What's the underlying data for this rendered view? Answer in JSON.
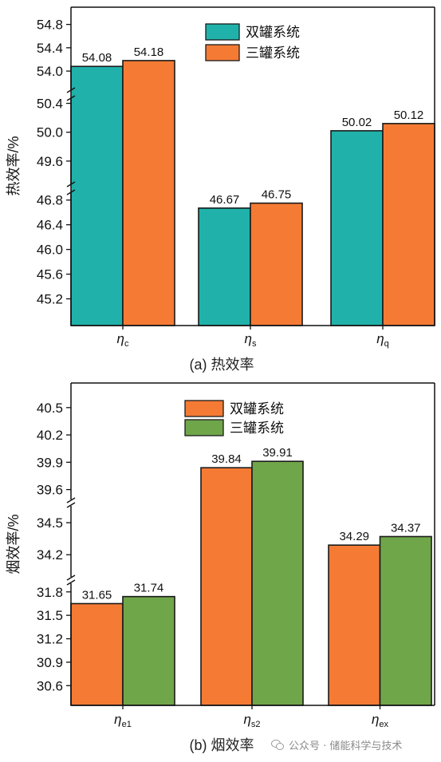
{
  "figure": {
    "watermark": "公众号 · 储能科学与技术"
  },
  "chart_data": [
    {
      "type": "bar",
      "caption": "(a) 热效率",
      "ylabel": "热效率/%",
      "categories": [
        {
          "sym": "η",
          "sub": "c"
        },
        {
          "sym": "η",
          "sub": "s"
        },
        {
          "sym": "η",
          "sub": "q"
        }
      ],
      "series": [
        {
          "name": "双罐系统",
          "color": "#20b2aa",
          "values": [
            54.08,
            46.67,
            50.02
          ]
        },
        {
          "name": "三罐系统",
          "color": "#f57b35",
          "values": [
            54.18,
            46.75,
            50.12
          ]
        }
      ],
      "value_labels": [
        [
          "54.08",
          "46.67",
          "50.02"
        ],
        [
          "54.18",
          "46.75",
          "50.12"
        ]
      ],
      "broken_axis": [
        {
          "range": [
            45.0,
            46.9
          ],
          "ticks": [
            "45.2",
            "45.6",
            "46.0",
            "46.4",
            "46.8"
          ]
        },
        {
          "range": [
            49.3,
            50.45
          ],
          "ticks": [
            "49.6",
            "50.0",
            "50.4"
          ]
        },
        {
          "range": [
            53.7,
            55.0
          ],
          "ticks": [
            "54.0",
            "54.4",
            "54.8"
          ]
        }
      ],
      "legend_position": "top-center"
    },
    {
      "type": "bar",
      "caption": "(b) 烟效率",
      "ylabel": "烟效率/%",
      "categories": [
        {
          "sym": "η",
          "sub": "e1"
        },
        {
          "sym": "η",
          "sub": "s2"
        },
        {
          "sym": "η",
          "sub": "ex"
        }
      ],
      "series": [
        {
          "name": "双罐系统",
          "color": "#f57b35",
          "values": [
            31.65,
            39.84,
            34.29
          ]
        },
        {
          "name": "三罐系统",
          "color": "#70a64a",
          "values": [
            31.74,
            39.91,
            34.37
          ]
        }
      ],
      "value_labels": [
        [
          "31.65",
          "39.84",
          "34.29"
        ],
        [
          "31.74",
          "39.91",
          "34.37"
        ]
      ],
      "broken_axis": [
        {
          "range": [
            30.45,
            31.9
          ],
          "ticks": [
            "30.6",
            "30.9",
            "31.2",
            "31.5",
            "31.8"
          ]
        },
        {
          "range": [
            34.0,
            34.65
          ],
          "ticks": [
            "34.2",
            "34.5"
          ]
        },
        {
          "range": [
            39.5,
            40.7
          ],
          "ticks": [
            "39.6",
            "39.9",
            "40.2",
            "40.5"
          ]
        }
      ],
      "legend_position": "top-center"
    }
  ]
}
